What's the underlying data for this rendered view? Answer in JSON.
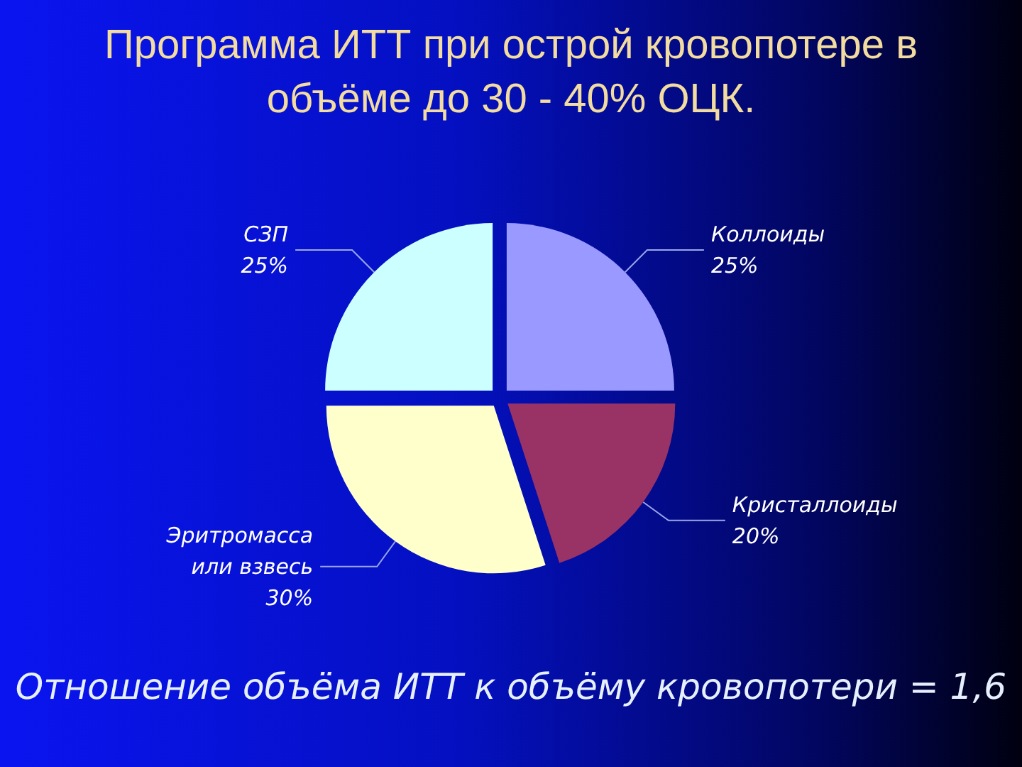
{
  "chart_data": {
    "type": "pie",
    "title": "Программа ИТТ при острой кровопотере в объёме до 30 - 40% ОЦК.",
    "categories": [
      "Коллоиды",
      "Кристаллоиды",
      "Эритромасса или взвесь",
      "СЗП"
    ],
    "values": [
      25,
      20,
      30,
      25
    ],
    "value_labels": [
      "25%",
      "20%",
      "30%",
      "25%"
    ],
    "colors": [
      "#9999ff",
      "#993366",
      "#ffffcc",
      "#ccffff"
    ],
    "annotations": [
      "Отношение объёма ИТТ к объёму кровопотери = 1,6"
    ]
  }
}
